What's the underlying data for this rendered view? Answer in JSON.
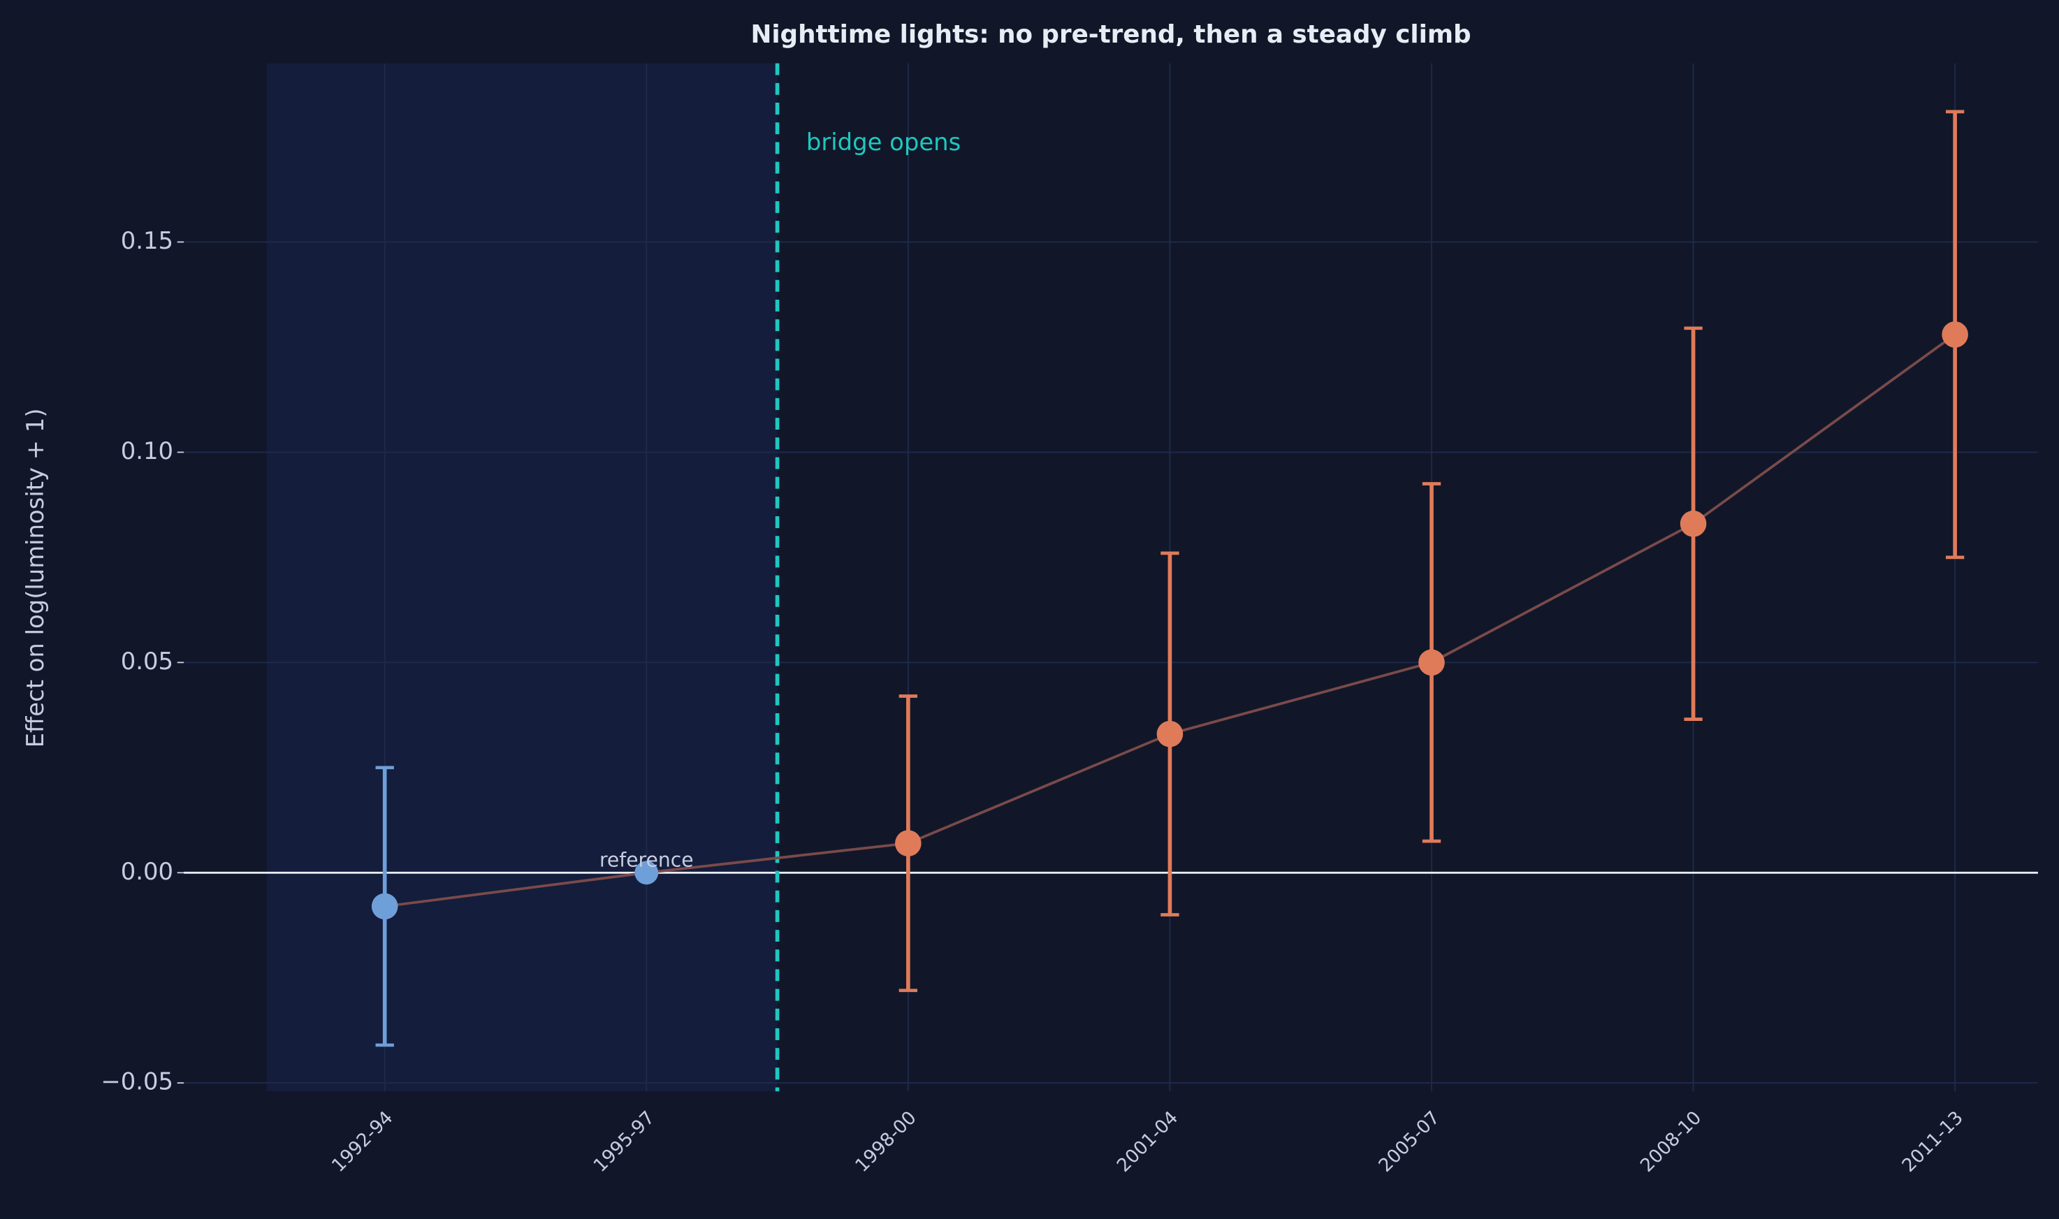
{
  "chart_data": {
    "type": "errorbar",
    "title": "Nighttime lights: no pre-trend, then a steady climb",
    "y_label": "Effect on log(luminosity + 1)",
    "categories": [
      "1992-94",
      "1995-97",
      "1998-00",
      "2001-04",
      "2005-07",
      "2008-10",
      "2011-13"
    ],
    "values": [
      -0.008,
      0,
      0.007,
      0.033,
      0.05,
      0.083,
      0.128
    ],
    "errors": [
      0.033,
      null,
      0.035,
      0.043,
      0.0425,
      0.0465,
      0.053
    ],
    "point_colors": [
      "#6f9fd8",
      "#6f9fd8",
      "#e07b5a",
      "#e07b5a",
      "#e07b5a",
      "#e07b5a",
      "#e07b5a"
    ],
    "line_color": "#7a4a4a",
    "event_label": "bridge opens",
    "event_color": "#1ec8c0",
    "reference_label": "reference",
    "ylim": [
      -0.052,
      0.1925
    ],
    "yticks": [
      {
        "value": -0.05,
        "label": "−0.05"
      },
      {
        "value": 0,
        "label": "0.00"
      },
      {
        "value": 0.05,
        "label": "0.05"
      },
      {
        "value": 0.1,
        "label": "0.10"
      },
      {
        "value": 0.15,
        "label": "0.15"
      }
    ],
    "grid": true
  }
}
